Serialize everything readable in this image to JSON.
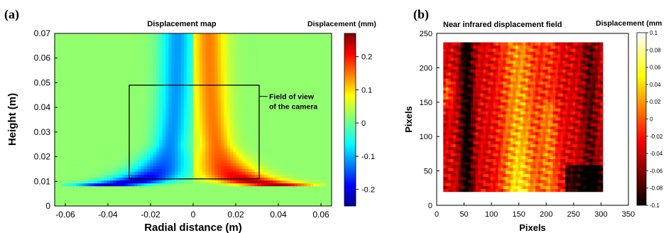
{
  "figure": {
    "panel_a_label": "(a)",
    "panel_b_label": "(b)"
  },
  "chart_data": [
    {
      "type": "heatmap",
      "panel": "(a)",
      "title": "Displacement map",
      "xlabel": "Radial distance (m)",
      "ylabel": "Height (m)",
      "xlim": [
        -0.065,
        0.065
      ],
      "ylim": [
        0,
        0.07
      ],
      "x_ticks": [
        "-0.06",
        "-0.04",
        "-0.02",
        "0",
        "0.02",
        "0.04",
        "0.06"
      ],
      "x_tick_values": [
        -0.06,
        -0.04,
        -0.02,
        0,
        0.02,
        0.04,
        0.06
      ],
      "y_ticks": [
        "0",
        "0.01",
        "0.02",
        "0.03",
        "0.04",
        "0.05",
        "0.06",
        "0.07"
      ],
      "y_tick_values": [
        0,
        0.01,
        0.02,
        0.03,
        0.04,
        0.05,
        0.06,
        0.07
      ],
      "colorbar": {
        "label": "Displacement (mm)",
        "range": [
          -0.25,
          0.27
        ],
        "ticks": [
          "-0.2",
          "-0.1",
          "0",
          "0.1",
          "0.2"
        ],
        "tick_values": [
          -0.2,
          -0.1,
          0,
          0.1,
          0.2
        ],
        "colormap": "jet"
      },
      "field": {
        "value_far": 0.02,
        "value_base": 0.02,
        "left_band_min": -0.22,
        "right_band_max": 0.25,
        "base_height": 0.008
      },
      "annotation": {
        "text_line1": "Field of view",
        "text_line2": "of the camera",
        "box_x": [
          -0.03,
          0.031
        ],
        "box_y": [
          0.011,
          0.049
        ]
      }
    },
    {
      "type": "heatmap",
      "panel": "(b)",
      "title": "Near infrared displacement field",
      "xlabel": "Pixels",
      "ylabel": "Pixels",
      "xlim": [
        0,
        350
      ],
      "ylim": [
        0,
        250
      ],
      "x_ticks": [
        "0",
        "50",
        "100",
        "150",
        "200",
        "250",
        "300",
        "350"
      ],
      "x_tick_values": [
        0,
        50,
        100,
        150,
        200,
        250,
        300,
        350
      ],
      "y_ticks": [
        "0",
        "50",
        "100",
        "150",
        "200",
        "250"
      ],
      "y_tick_values": [
        0,
        50,
        100,
        150,
        200,
        250
      ],
      "data_extent": {
        "x": [
          12,
          303
        ],
        "y": [
          20,
          237
        ]
      },
      "colorbar": {
        "label": "Displacement (mm",
        "range": [
          -0.1,
          0.1
        ],
        "ticks": [
          "0.1",
          "0.08",
          "0.06",
          "0.04",
          "0.02",
          "0",
          "-0.02",
          "-0.04",
          "-0.06",
          "-0.08",
          "-0.1"
        ],
        "tick_values": [
          0.1,
          0.08,
          0.06,
          0.04,
          0.02,
          0,
          -0.02,
          -0.04,
          -0.06,
          -0.08,
          -0.1
        ],
        "colormap": "hot"
      }
    }
  ]
}
